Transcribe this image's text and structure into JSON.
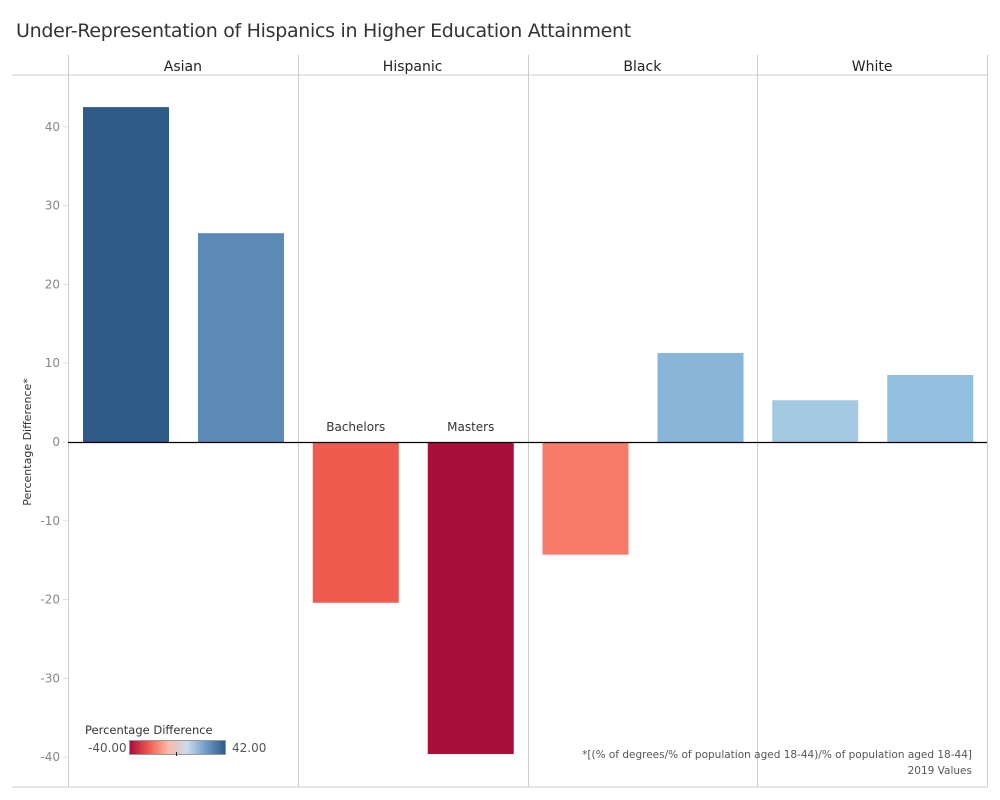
{
  "chart_data": {
    "type": "bar",
    "title": "Under-Representation of Hispanics in Higher Education Attainment",
    "xlabel": "",
    "ylabel": "Percentage Difference*",
    "ylim": [
      -41,
      45
    ],
    "yticks": [
      40,
      30,
      20,
      10,
      0,
      -10,
      -20,
      -30,
      -40
    ],
    "grid": false,
    "panels": [
      "Asian",
      "Hispanic",
      "Black",
      "White"
    ],
    "categories": [
      "Bachelors",
      "Masters"
    ],
    "category_labels_shown_in_panel": "Hispanic",
    "series": [
      {
        "panel": "Asian",
        "values": [
          42.5,
          26.5
        ],
        "colors": [
          "#2e5a87",
          "#5a8ab5"
        ]
      },
      {
        "panel": "Hispanic",
        "values": [
          -20.4,
          -39.6
        ],
        "colors": [
          "#ef5b4e",
          "#a90e3a"
        ]
      },
      {
        "panel": "Black",
        "values": [
          -14.3,
          11.3
        ],
        "colors": [
          "#f67a68",
          "#89b6d8"
        ]
      },
      {
        "panel": "White",
        "values": [
          5.3,
          8.5
        ],
        "colors": [
          "#a3c9e3",
          "#93bfe0"
        ]
      }
    ],
    "legend": {
      "title": "Percentage Difference",
      "type": "diverging-color-ramp",
      "min_label": "-40.00",
      "max_label": "42.00",
      "min": -40,
      "max": 42,
      "colors": [
        "#a90e3a",
        "#ef5b4e",
        "#fbb9a6",
        "#c9dcec",
        "#6d9cc8",
        "#2e5a87"
      ],
      "placement": "bottom-left"
    },
    "annotations": [
      "*[(% of  degrees/% of population aged 18-44)/% of population aged 18-44]",
      "2019 Values"
    ]
  }
}
